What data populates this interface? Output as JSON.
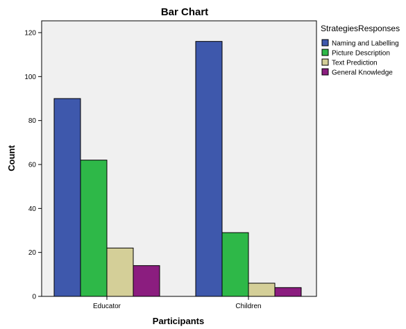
{
  "chart_data": {
    "type": "bar",
    "title": "Bar Chart",
    "xlabel": "Participants",
    "ylabel": "Count",
    "categories": [
      "Educator",
      "Children"
    ],
    "ylim": [
      0,
      125
    ],
    "yticks": [
      0,
      20,
      40,
      60,
      80,
      100,
      120
    ],
    "grid": false,
    "legend_title": "StrategiesResponses",
    "legend_position": "right",
    "plot_background": "#f0f0f0",
    "series": [
      {
        "name": "Naming and Labelling",
        "color": "#3e58ac",
        "values": [
          90,
          116
        ]
      },
      {
        "name": "Picture Description",
        "color": "#2eb848",
        "values": [
          62,
          29
        ]
      },
      {
        "name": "Text Prediction",
        "color": "#d4cf98",
        "values": [
          22,
          6
        ]
      },
      {
        "name": "General Knowledge",
        "color": "#8b1d7f",
        "values": [
          14,
          4
        ]
      }
    ]
  }
}
